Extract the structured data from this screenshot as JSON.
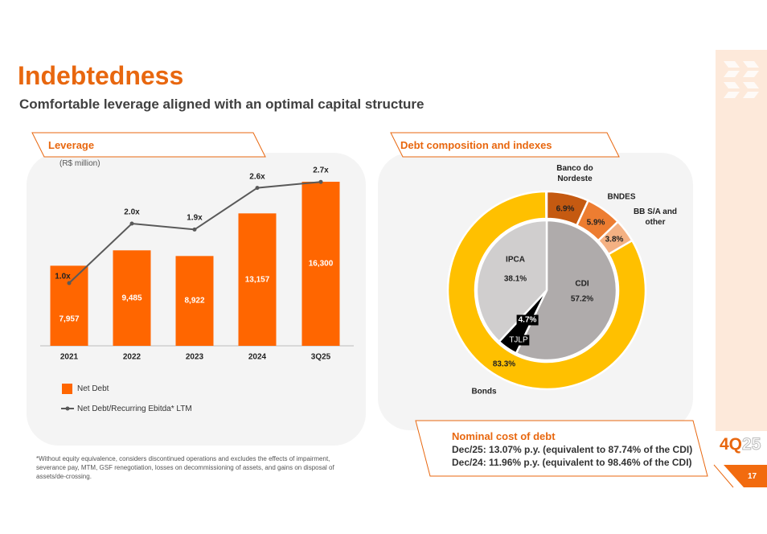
{
  "header": {
    "title": "Indebtedness",
    "subtitle": "Comfortable leverage aligned with an optimal capital structure"
  },
  "footer": {
    "note": "*Without equity equivalence, considers discontinued operations and excludes the effects of impairment, severance pay, MTM, GSF renegotiation, losses on decommissioning of assets, and gains on disposal of assets/de-crossing.",
    "quarter_main": "4Q",
    "quarter_year": "25",
    "page": "17"
  },
  "cost": {
    "title": "Nominal cost of debt",
    "line1": "Dec/25: 13.07% p.y. (equivalent to 87.74% of the CDI)",
    "line2": "Dec/24: 11.96% p.y. (equivalent to 98.46% of the CDI)"
  },
  "chart_data": [
    {
      "type": "bar",
      "title": "Leverage",
      "unit": "(R$ million)",
      "categories": [
        "2021",
        "2022",
        "2023",
        "2024",
        "3Q25"
      ],
      "series": [
        {
          "name": "Net Debt",
          "type": "bar",
          "values": [
            7957,
            9485,
            8922,
            13157,
            16300
          ],
          "labels": [
            "7,957",
            "9,485",
            "8,922",
            "13,157",
            "16,300"
          ],
          "color": "#FF6600"
        },
        {
          "name": "Net Debt/Recurring Ebitda* LTM",
          "type": "line",
          "values": [
            1.0,
            2.0,
            1.9,
            2.6,
            2.7
          ],
          "labels": [
            "1.0x",
            "2.0x",
            "1.9x",
            "2.6x",
            "2.7x"
          ],
          "color": "#595959"
        }
      ]
    },
    {
      "type": "pie",
      "title": "Debt composition and indexes",
      "outer": [
        {
          "name": "Banco do Nordeste",
          "value": 6.9,
          "label": "6.9%",
          "color": "#C55A11"
        },
        {
          "name": "BNDES",
          "value": 5.9,
          "label": "5.9%",
          "color": "#ED7D31"
        },
        {
          "name": "BB S/A and other",
          "value": 3.8,
          "label": "3.8%",
          "color": "#F4B183"
        },
        {
          "name": "Bonds",
          "value": 83.3,
          "label": "83.3%",
          "color": "#FFC000"
        }
      ],
      "inner": [
        {
          "name": "CDI",
          "value": 57.2,
          "label": "57.2%",
          "color": "#AFABAB"
        },
        {
          "name": "TJLP",
          "value": 4.7,
          "label": "4.7%",
          "color": "#000000"
        },
        {
          "name": "IPCA",
          "value": 38.1,
          "label": "38.1%",
          "color": "#D0CECE"
        }
      ]
    }
  ]
}
